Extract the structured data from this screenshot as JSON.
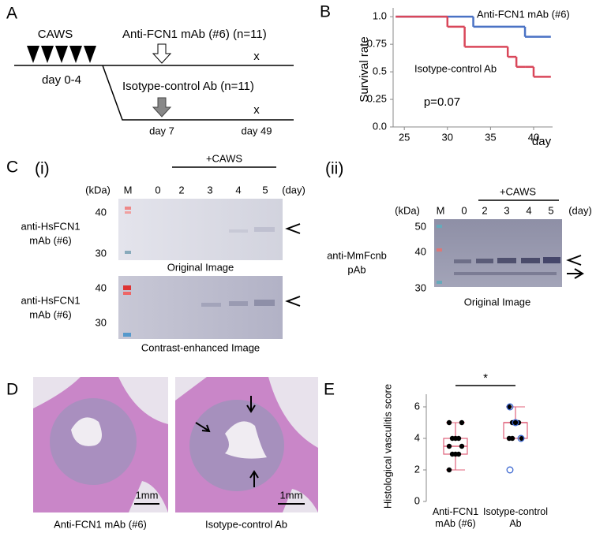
{
  "panel_a": {
    "label": "A",
    "treatment": "CAWS",
    "treatment_days": "day 0-4",
    "group1": "Anti-FCN1 mAb (#6) (n=11)",
    "group2": "Isotype-control Ab (n=11)",
    "end1": "x",
    "end2": "x",
    "day_start": "day 7",
    "day_end": "day 49"
  },
  "panel_b": {
    "label": "B"
  },
  "panel_c": {
    "label": "C",
    "sub1": {
      "label": "(i)",
      "unit": "(kDa)",
      "lanes": [
        "M",
        "0",
        "2",
        "3",
        "4",
        "5"
      ],
      "lane_unit": "(day)",
      "group": "+CAWS",
      "markers": [
        "40",
        "30"
      ],
      "markers_enhanced": [
        "40",
        "30"
      ],
      "antibody": [
        "anti-HsFCN1",
        "mAb (#6)"
      ],
      "antibody_enhanced": [
        "anti-HsFCN1",
        "mAb (#6)"
      ],
      "captions": [
        "Original Image",
        "Contrast-enhanced Image"
      ]
    },
    "sub2": {
      "label": "(ii)",
      "unit": "(kDa)",
      "lanes": [
        "M",
        "0",
        "2",
        "3",
        "4",
        "5"
      ],
      "lane_unit": "(day)",
      "group": "+CAWS",
      "markers": [
        "50",
        "40",
        "30"
      ],
      "antibody": [
        "anti-MmFcnb",
        "pAb"
      ],
      "caption": "Original Image"
    }
  },
  "panel_d": {
    "label": "D",
    "scale_bars": [
      "1mm",
      "1mm"
    ],
    "captions": [
      "Anti-FCN1 mAb (#6)",
      "Isotype-control Ab"
    ]
  },
  "panel_e": {
    "label": "E"
  },
  "chart_data": [
    {
      "type": "line",
      "step": true,
      "ylabel": "Survival rate",
      "xlabel": "day",
      "annotation": "p=0.07",
      "xlim": [
        23.7,
        42.2
      ],
      "xticks": [
        25,
        30,
        35,
        40
      ],
      "ylim": [
        0,
        1.08
      ],
      "yticks": [
        {
          "value": 0,
          "label": "0.0"
        },
        0.25,
        0.5,
        0.75,
        {
          "value": 1,
          "label": "1.0"
        }
      ],
      "series": [
        {
          "name": "Anti-FCN1 mAb (#6)",
          "color": "#4a72c4",
          "x": [
            24,
            33,
            39,
            42
          ],
          "values": [
            1,
            0.909,
            0.818,
            0.818
          ]
        },
        {
          "name": "Isotype-control Ab",
          "color": "#d9475a",
          "x": [
            24,
            30,
            32,
            37,
            38,
            39,
            40,
            42
          ],
          "values": [
            1,
            0.909,
            0.727,
            0.636,
            0.545,
            0.545,
            0.455,
            0.455
          ]
        }
      ]
    },
    {
      "type": "box",
      "ylabel": "Histological vasculitis score",
      "annotation": "*",
      "ylim": [
        0,
        7
      ],
      "yticks": [
        0,
        2,
        4,
        6
      ],
      "categories": [
        "Anti-FCN1 mAb (#6)",
        "Isotype-control Ab"
      ],
      "box_color": "#e0607a",
      "point_color": "#000000",
      "open_point_color": "#3a66d0",
      "boxes": [
        {
          "min": 2,
          "q1": 3,
          "median": 3.5,
          "q3": 4,
          "max": 5,
          "points": [
            2,
            3,
            3,
            3,
            3.5,
            3.5,
            4,
            4,
            4,
            5,
            5
          ],
          "open_points": []
        },
        {
          "min": 4,
          "q1": 4,
          "median": 5,
          "q3": 5,
          "max": 6,
          "points": [
            6,
            5,
            5,
            5,
            4,
            4,
            4
          ],
          "open_points": [
            6,
            5,
            4,
            2
          ]
        }
      ]
    }
  ]
}
